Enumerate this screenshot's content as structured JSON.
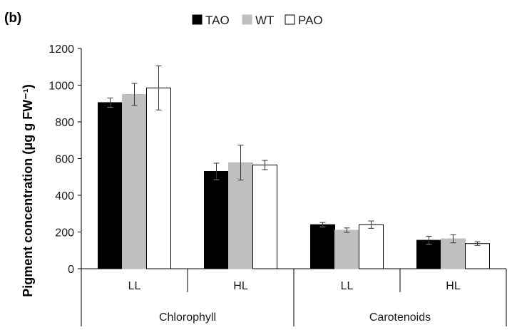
{
  "panel_label": "(b)",
  "chart_data": {
    "type": "bar",
    "ylabel": "Pigment concentration (μg g FW⁻¹)",
    "ylim": [
      0,
      1200
    ],
    "yticks": [
      0,
      200,
      400,
      600,
      800,
      1000,
      1200
    ],
    "grid": false,
    "legend_position": "top-center",
    "groups": [
      {
        "name": "Chlorophyll",
        "categories": [
          "LL",
          "HL"
        ]
      },
      {
        "name": "Carotenoids",
        "categories": [
          "LL",
          "HL"
        ]
      }
    ],
    "series": [
      {
        "name": "TAO",
        "color": "#000000",
        "stroke": "#000000",
        "values": [
          905,
          530,
          240,
          155
        ],
        "errors": [
          25,
          45,
          12,
          22
        ]
      },
      {
        "name": "WT",
        "color": "#bfbfbf",
        "stroke": "#bfbfbf",
        "values": [
          950,
          578,
          210,
          163
        ],
        "errors": [
          60,
          95,
          12,
          22
        ]
      },
      {
        "name": "PAO",
        "color": "#ffffff",
        "stroke": "#000000",
        "values": [
          985,
          565,
          240,
          137
        ],
        "errors": [
          120,
          25,
          20,
          10
        ]
      }
    ]
  }
}
